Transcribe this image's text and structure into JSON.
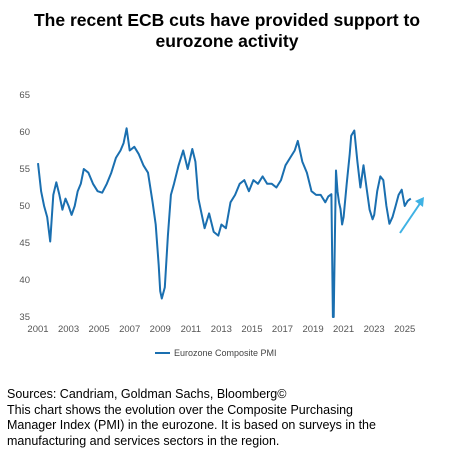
{
  "header": {
    "title_line1": "The recent ECB cuts have provided support to",
    "title_line2": "eurozone activity"
  },
  "colors": {
    "series": "#1a6fb0",
    "arrow": "#3fb2e4",
    "tick_text": "#555555"
  },
  "chart_data": {
    "type": "line",
    "title": "The recent ECB cuts have provided support to eurozone activity",
    "xlabel": "",
    "ylabel": "",
    "ylim": [
      35,
      65
    ],
    "yticks": [
      "65",
      "60",
      "55",
      "50",
      "45",
      "40",
      "35"
    ],
    "xlim": [
      2001.0,
      2026.0
    ],
    "xticks": [
      "2001",
      "2003",
      "2005",
      "2007",
      "2009",
      "2011",
      "2013",
      "2015",
      "2017",
      "2019",
      "2021",
      "2023",
      "2025"
    ],
    "grid": false,
    "legend": "bottom-center",
    "series": [
      {
        "name": "Eurozone Composite PMI",
        "x": [
          2001.0,
          2001.2,
          2001.4,
          2001.6,
          2001.8,
          2002.0,
          2002.2,
          2002.4,
          2002.6,
          2002.8,
          2003.0,
          2003.2,
          2003.4,
          2003.6,
          2003.8,
          2004.0,
          2004.3,
          2004.6,
          2004.9,
          2005.2,
          2005.5,
          2005.8,
          2006.1,
          2006.4,
          2006.6,
          2006.8,
          2007.0,
          2007.3,
          2007.6,
          2007.9,
          2008.2,
          2008.5,
          2008.7,
          2008.9,
          2009.0,
          2009.1,
          2009.3,
          2009.5,
          2009.7,
          2009.9,
          2010.2,
          2010.5,
          2010.8,
          2011.1,
          2011.3,
          2011.5,
          2011.7,
          2011.9,
          2012.2,
          2012.5,
          2012.8,
          2013.0,
          2013.3,
          2013.6,
          2013.9,
          2014.2,
          2014.5,
          2014.8,
          2015.1,
          2015.4,
          2015.7,
          2016.0,
          2016.3,
          2016.6,
          2016.9,
          2017.2,
          2017.5,
          2017.8,
          2018.0,
          2018.3,
          2018.6,
          2018.9,
          2019.2,
          2019.5,
          2019.8,
          2020.0,
          2020.2,
          2020.3,
          2020.35,
          2020.45,
          2020.5,
          2020.6,
          2020.7,
          2020.8,
          2020.9,
          2021.0,
          2021.2,
          2021.4,
          2021.5,
          2021.7,
          2021.9,
          2022.1,
          2022.3,
          2022.5,
          2022.7,
          2022.9,
          2023.0,
          2023.2,
          2023.4,
          2023.6,
          2023.8,
          2024.0,
          2024.2,
          2024.4,
          2024.6,
          2024.8,
          2025.0,
          2025.2,
          2025.4
        ],
        "values": [
          55.8,
          52.0,
          50.0,
          48.5,
          45.2,
          51.5,
          53.2,
          51.5,
          49.5,
          51.0,
          50.0,
          48.8,
          50.0,
          52.0,
          53.0,
          55.0,
          54.5,
          53.0,
          52.0,
          51.8,
          53.0,
          54.5,
          56.5,
          57.5,
          58.5,
          60.5,
          57.5,
          58.0,
          57.0,
          55.5,
          54.5,
          50.5,
          47.5,
          42.0,
          38.5,
          37.5,
          39.0,
          46.0,
          51.5,
          53.0,
          55.5,
          57.5,
          55.0,
          57.7,
          56.0,
          51.0,
          49.0,
          47.0,
          49.0,
          46.5,
          46.0,
          47.5,
          47.0,
          50.5,
          51.5,
          53.0,
          53.5,
          52.0,
          53.5,
          53.0,
          54.0,
          53.0,
          53.0,
          52.5,
          53.5,
          55.5,
          56.5,
          57.5,
          58.8,
          56.0,
          54.5,
          52.0,
          51.5,
          51.5,
          50.5,
          51.3,
          51.6,
          29.7,
          32.0,
          48.5,
          54.8,
          52.0,
          50.5,
          49.6,
          47.5,
          48.5,
          53.0,
          57.0,
          59.5,
          60.2,
          56.0,
          52.5,
          55.5,
          52.5,
          49.5,
          48.2,
          48.8,
          52.0,
          54.0,
          53.5,
          50.0,
          47.6,
          48.5,
          50.0,
          51.5,
          52.2,
          50.0,
          50.7,
          51.0
        ]
      }
    ]
  },
  "notes": {
    "line1": "Sources: Candriam, Goldman Sachs, Bloomberg©",
    "line2": "This chart shows the evolution over the Composite Purchasing",
    "line3": "Manager Index (PMI) in the eurozone. It is based on surveys in the",
    "line4": "manufacturing and services sectors in the region."
  }
}
